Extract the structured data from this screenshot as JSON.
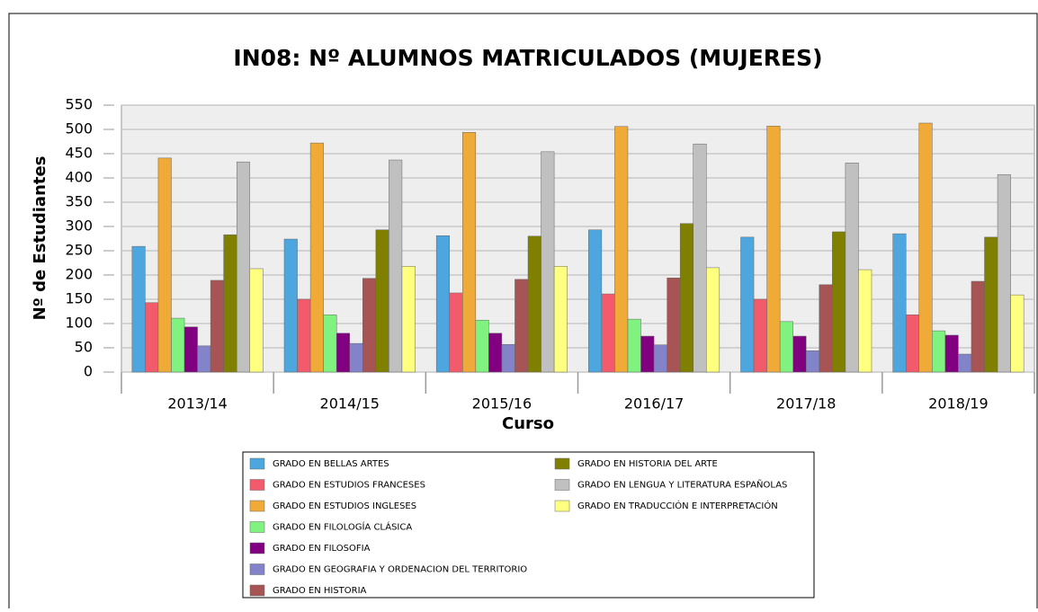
{
  "chart_data": {
    "type": "bar",
    "title": "IN08: Nº ALUMNOS MATRICULADOS (MUJERES)",
    "x_label": "Curso",
    "y_label": "Nº de Estudiantes",
    "categories": [
      "2013/14",
      "2014/15",
      "2015/16",
      "2016/17",
      "2017/18",
      "2018/19"
    ],
    "series": [
      {
        "name": "GRADO EN BELLAS ARTES",
        "color": "#4ea6df",
        "values": [
          259,
          274,
          281,
          293,
          278,
          285
        ]
      },
      {
        "name": "GRADO EN ESTUDIOS FRANCESES",
        "color": "#f25b6b",
        "values": [
          143,
          150,
          163,
          161,
          150,
          118
        ]
      },
      {
        "name": "GRADO EN ESTUDIOS INGLESES",
        "color": "#f0aa38",
        "values": [
          441,
          472,
          494,
          506,
          507,
          513
        ]
      },
      {
        "name": "GRADO EN FILOLOGÍA CLÁSICA",
        "color": "#7ff27f",
        "values": [
          111,
          118,
          107,
          109,
          104,
          85
        ]
      },
      {
        "name": "GRADO EN FILOSOFIA",
        "color": "#800080",
        "values": [
          93,
          80,
          80,
          74,
          74,
          76
        ]
      },
      {
        "name": "GRADO EN GEOGRAFIA Y ORDENACION DEL TERRITORIO",
        "color": "#8383c9",
        "values": [
          54,
          59,
          57,
          56,
          44,
          37
        ]
      },
      {
        "name": "GRADO EN HISTORIA",
        "color": "#a65454",
        "values": [
          189,
          193,
          191,
          194,
          180,
          187
        ]
      },
      {
        "name": "GRADO EN HISTORIA DEL ARTE",
        "color": "#808000",
        "values": [
          283,
          293,
          280,
          306,
          289,
          278
        ]
      },
      {
        "name": "GRADO EN LENGUA Y LITERATURA ESPAÑOLAS",
        "color": "#c0c0c0",
        "values": [
          433,
          437,
          454,
          470,
          431,
          407
        ]
      },
      {
        "name": "GRADO EN TRADUCCIÓN E INTERPRETACIÓN",
        "color": "#ffff80",
        "values": [
          213,
          218,
          218,
          215,
          211,
          159
        ]
      }
    ],
    "ylim": [
      0,
      550
    ],
    "yticks": [
      0,
      50,
      100,
      150,
      200,
      250,
      300,
      350,
      400,
      450,
      500,
      550
    ],
    "grid": true,
    "legend": "bottom"
  }
}
